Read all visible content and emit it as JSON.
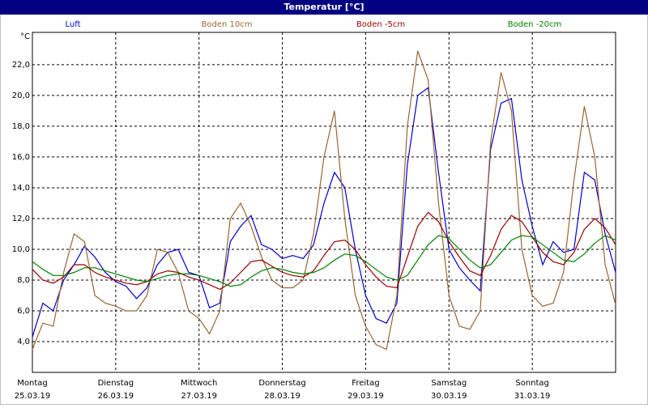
{
  "chart_data": {
    "type": "line",
    "title": "Temperatur [°C]",
    "y_label": "°C",
    "x": [
      0,
      3,
      6,
      9,
      12,
      15,
      18,
      21,
      24,
      27,
      30,
      33,
      36,
      39,
      42,
      45,
      48,
      51,
      54,
      57,
      60,
      63,
      66,
      69,
      72,
      75,
      78,
      81,
      84,
      87,
      90,
      93,
      96,
      99,
      102,
      105,
      108,
      111,
      114,
      117,
      120,
      123,
      126,
      129,
      132,
      135,
      138,
      141,
      144,
      147,
      150,
      153,
      156,
      159,
      162,
      165,
      168
    ],
    "xlim": [
      0,
      168
    ],
    "xticks": [
      {
        "value": 0,
        "label": "Montag"
      },
      {
        "value": 24,
        "label": "Dienstag"
      },
      {
        "value": 48,
        "label": "Mittwoch"
      },
      {
        "value": 72,
        "label": "Donnerstag"
      },
      {
        "value": 96,
        "label": "Freitag"
      },
      {
        "value": 120,
        "label": "Samstag"
      },
      {
        "value": 144,
        "label": "Sonntag"
      }
    ],
    "xtick_dates": [
      "25.03.19",
      "26.03.19",
      "27.03.19",
      "28.03.19",
      "29.03.19",
      "30.03.19",
      "31.03.19"
    ],
    "ylim": [
      2.0,
      24.1
    ],
    "yticks": [
      {
        "value": 4,
        "label": "4,0"
      },
      {
        "value": 6,
        "label": "6,0"
      },
      {
        "value": 8,
        "label": "8,0"
      },
      {
        "value": 10,
        "label": "10,0"
      },
      {
        "value": 12,
        "label": "12,0"
      },
      {
        "value": 14,
        "label": "14,0"
      },
      {
        "value": 16,
        "label": "16,0"
      },
      {
        "value": 18,
        "label": "18,0"
      },
      {
        "value": 20,
        "label": "20,0"
      },
      {
        "value": 22,
        "label": "22,0"
      }
    ],
    "grid": true,
    "series": [
      {
        "name": "Luft",
        "color": "#0000cc",
        "values": [
          4.3,
          6.5,
          6.0,
          8.0,
          9.0,
          10.2,
          9.5,
          8.5,
          7.9,
          7.6,
          6.8,
          7.5,
          9.0,
          9.8,
          10.0,
          8.5,
          8.3,
          6.2,
          6.5,
          10.5,
          11.5,
          12.2,
          10.3,
          10.0,
          9.4,
          9.6,
          9.4,
          10.3,
          13.0,
          15.0,
          14.0,
          10.0,
          7.0,
          5.5,
          5.2,
          6.5,
          15.5,
          20.0,
          20.5,
          15.0,
          10.0,
          8.8,
          8.0,
          7.3,
          16.5,
          19.5,
          19.8,
          14.5,
          11.5,
          9.0,
          10.5,
          9.8,
          10.0,
          15.0,
          14.5,
          11.0,
          8.5
        ]
      },
      {
        "name": "Boden 10cm",
        "color": "#996633",
        "values": [
          3.5,
          5.2,
          5.0,
          8.5,
          11.0,
          10.5,
          7.0,
          6.5,
          6.3,
          6.0,
          6.0,
          7.0,
          10.0,
          9.8,
          8.5,
          6.0,
          5.5,
          4.5,
          6.0,
          12.0,
          13.0,
          11.5,
          9.5,
          8.0,
          7.5,
          7.5,
          8.0,
          11.0,
          16.0,
          19.0,
          12.0,
          7.0,
          5.0,
          3.8,
          3.5,
          7.0,
          18.0,
          22.9,
          21.0,
          13.0,
          7.0,
          5.0,
          4.8,
          6.0,
          17.0,
          21.5,
          19.0,
          10.0,
          7.0,
          6.3,
          6.5,
          8.5,
          14.5,
          19.3,
          16.0,
          9.0,
          6.4
        ]
      },
      {
        "name": "Boden -5cm",
        "color": "#990000",
        "values": [
          8.7,
          8.0,
          7.8,
          8.2,
          9.0,
          9.0,
          8.5,
          8.2,
          8.0,
          7.8,
          7.7,
          7.9,
          8.4,
          8.6,
          8.5,
          8.2,
          8.0,
          7.7,
          7.4,
          7.8,
          8.5,
          9.2,
          9.3,
          8.9,
          8.5,
          8.3,
          8.2,
          8.6,
          9.6,
          10.5,
          10.6,
          10.0,
          9.0,
          8.2,
          7.6,
          7.5,
          9.5,
          11.5,
          12.4,
          11.8,
          10.5,
          9.5,
          8.6,
          8.3,
          9.6,
          11.3,
          12.2,
          11.8,
          10.8,
          9.8,
          9.2,
          9.0,
          9.8,
          11.3,
          12.0,
          11.4,
          10.3
        ]
      },
      {
        "name": "Boden -20cm",
        "color": "#008000",
        "values": [
          9.2,
          8.7,
          8.3,
          8.3,
          8.5,
          8.8,
          8.8,
          8.6,
          8.4,
          8.2,
          8.0,
          7.9,
          8.1,
          8.3,
          8.4,
          8.4,
          8.3,
          8.1,
          7.9,
          7.6,
          7.7,
          8.2,
          8.6,
          8.8,
          8.7,
          8.5,
          8.4,
          8.5,
          8.8,
          9.3,
          9.7,
          9.6,
          9.2,
          8.7,
          8.2,
          8.0,
          8.3,
          9.3,
          10.3,
          10.9,
          10.7,
          10.0,
          9.3,
          8.8,
          9.0,
          9.8,
          10.6,
          10.9,
          10.8,
          10.3,
          9.8,
          9.3,
          9.2,
          9.7,
          10.4,
          10.9,
          10.6
        ]
      }
    ]
  }
}
